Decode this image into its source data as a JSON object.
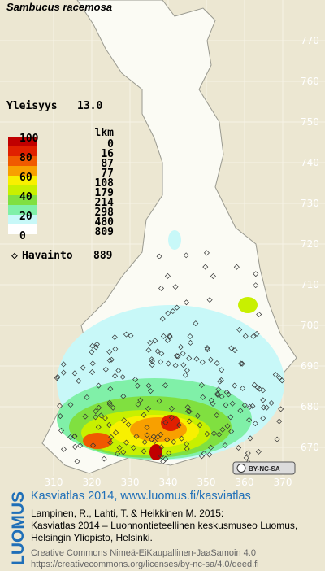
{
  "title": "Sambucus racemosa",
  "frequency": {
    "label": "Yleisyys",
    "value": "13.0"
  },
  "legend": {
    "scale": [
      100,
      80,
      60,
      40,
      20,
      0
    ],
    "count_header": "lkm",
    "counts": [
      0,
      16,
      87,
      77,
      108,
      179,
      214,
      298,
      480,
      809
    ],
    "colors": [
      "#c00000",
      "#e02000",
      "#f05a00",
      "#f8a000",
      "#f8f000",
      "#c8f000",
      "#80e040",
      "#80f0a8",
      "#c8f8f8",
      "#ffffff"
    ]
  },
  "observations": {
    "label": "Havainto",
    "count": 889
  },
  "y_grid": [
    770,
    760,
    750,
    740,
    730,
    720,
    710,
    700,
    690,
    680,
    670
  ],
  "x_grid": [
    310,
    320,
    330,
    340,
    350,
    360,
    370
  ],
  "badge": "BY-NC-SA",
  "logo": "LUOMUS",
  "footer": {
    "link": "Kasviatlas 2014, www.luomus.fi/kasviatlas",
    "citation": [
      "Lampinen, R., Lahti, T. & Heikkinen M. 2015:",
      "Kasviatlas 2014 – Luonnontieteellinen keskusmuseo Luomus,",
      "Helsingin Yliopisto, Helsinki."
    ],
    "license": [
      "Creative Commons Nimeä-EiKaupallinen-JaaSamoin 4.0",
      "https://creativecommons.org/licenses/by-nc-sa/4.0/deed.fi"
    ]
  }
}
